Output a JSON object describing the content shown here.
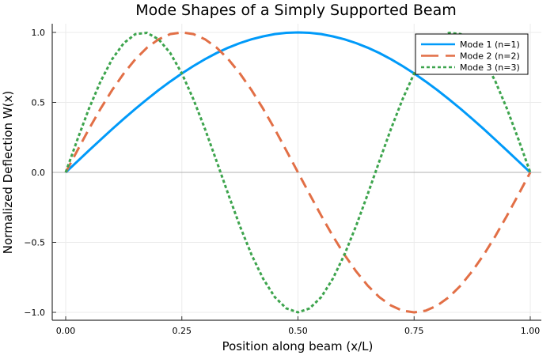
{
  "chart_data": {
    "type": "line",
    "title": "Mode Shapes of a Simply Supported Beam",
    "xlabel": "Position along beam (x/L)",
    "ylabel": "Normalized Deflection W(x)",
    "xlim": [
      0,
      1
    ],
    "ylim": [
      -1,
      1
    ],
    "grid": true,
    "legend_position": "top-right",
    "xticks": [
      0,
      0.25,
      0.5,
      0.75,
      1.0
    ],
    "xtick_labels": [
      "0.00",
      "0.25",
      "0.50",
      "0.75",
      "1.00"
    ],
    "yticks": [
      -1.0,
      -0.5,
      0.0,
      0.5,
      1.0
    ],
    "ytick_labels": [
      "−1.0",
      "−0.5",
      "0.0",
      "0.5",
      "1.0"
    ],
    "hline": 0,
    "x": [
      0,
      0.025,
      0.05,
      0.075,
      0.1,
      0.125,
      0.15,
      0.175,
      0.2,
      0.225,
      0.25,
      0.275,
      0.3,
      0.325,
      0.35,
      0.375,
      0.4,
      0.425,
      0.45,
      0.475,
      0.5,
      0.525,
      0.55,
      0.575,
      0.6,
      0.625,
      0.65,
      0.675,
      0.7,
      0.725,
      0.75,
      0.775,
      0.8,
      0.825,
      0.85,
      0.875,
      0.9,
      0.925,
      0.95,
      0.975,
      1.0
    ],
    "series": [
      {
        "name": "Mode 1 (n=1)",
        "color": "#009af9",
        "dash": "solid",
        "values": [
          0,
          0.078,
          0.156,
          0.233,
          0.309,
          0.383,
          0.454,
          0.522,
          0.588,
          0.649,
          0.707,
          0.76,
          0.809,
          0.853,
          0.891,
          0.924,
          0.951,
          0.972,
          0.988,
          0.997,
          1.0,
          0.997,
          0.988,
          0.972,
          0.951,
          0.924,
          0.891,
          0.853,
          0.809,
          0.76,
          0.707,
          0.649,
          0.588,
          0.522,
          0.454,
          0.383,
          0.309,
          0.233,
          0.156,
          0.078,
          0
        ]
      },
      {
        "name": "Mode 2 (n=2)",
        "color": "#e26f46",
        "dash": "dash",
        "values": [
          0,
          0.156,
          0.309,
          0.454,
          0.588,
          0.707,
          0.809,
          0.891,
          0.951,
          0.988,
          1.0,
          0.988,
          0.951,
          0.891,
          0.809,
          0.707,
          0.588,
          0.454,
          0.309,
          0.156,
          0,
          -0.156,
          -0.309,
          -0.454,
          -0.588,
          -0.707,
          -0.809,
          -0.891,
          -0.951,
          -0.988,
          -1.0,
          -0.988,
          -0.951,
          -0.891,
          -0.809,
          -0.707,
          -0.588,
          -0.454,
          -0.309,
          -0.156,
          0
        ]
      },
      {
        "name": "Mode 3 (n=3)",
        "color": "#3da44d",
        "dash": "dot",
        "values": [
          0,
          0.233,
          0.454,
          0.649,
          0.809,
          0.924,
          0.988,
          0.997,
          0.951,
          0.853,
          0.707,
          0.522,
          0.309,
          0.078,
          -0.156,
          -0.383,
          -0.588,
          -0.76,
          -0.891,
          -0.972,
          -1.0,
          -0.972,
          -0.891,
          -0.76,
          -0.588,
          -0.383,
          -0.156,
          0.078,
          0.309,
          0.522,
          0.707,
          0.853,
          0.951,
          0.997,
          0.988,
          0.924,
          0.809,
          0.649,
          0.454,
          0.233,
          0
        ]
      }
    ]
  }
}
